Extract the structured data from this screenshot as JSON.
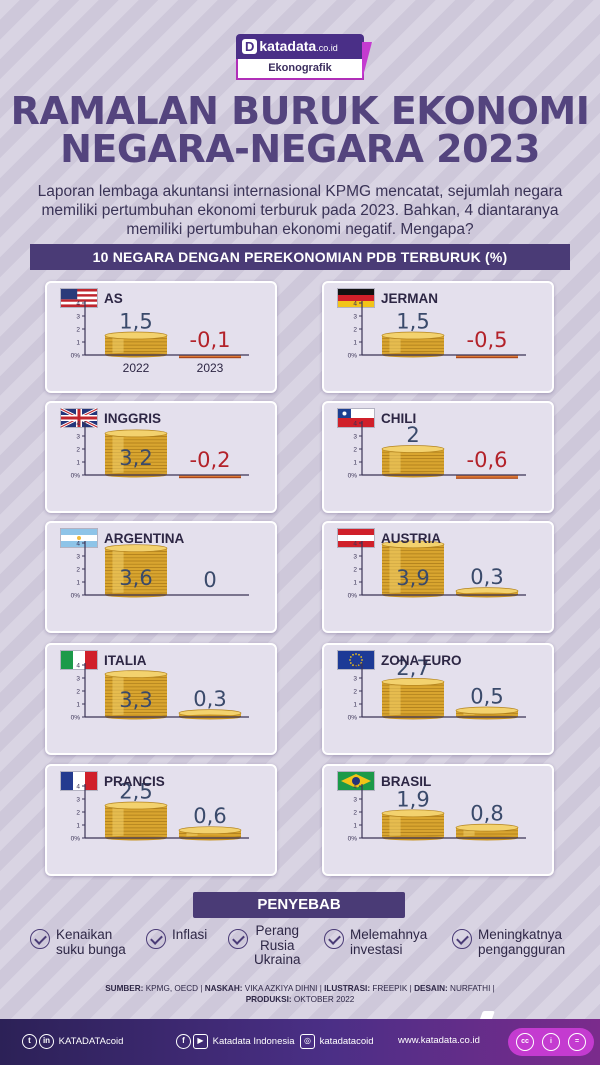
{
  "header": {
    "logo_d": "D",
    "logo_text": "katadata",
    "logo_suffix": ".co.id",
    "logo_tag": "Ekonografik",
    "title_line1": "RAMALAN BURUK EKONOMI",
    "title_line2": "NEGARA-NEGARA 2023",
    "intro_line1": "Laporan lembaga akuntansi internasional KPMG mencatat, sejumlah negara",
    "intro_line2": "memiliki pertumbuhan ekonomi terburuk pada 2023. Bahkan, 4 diantaranya",
    "intro_line3": "memiliki pertumbuhan ekonomi negatif. Mengapa?",
    "section_title": "10 NEGARA DENGAN PEREKONOMIAN PDB TERBURUK (%)"
  },
  "chart_data": {
    "type": "bar",
    "title": "10 NEGARA DENGAN PEREKONOMIAN PDB TERBURUK (%)",
    "categories": [
      "2022",
      "2023"
    ],
    "ylim": [
      0,
      4
    ],
    "yticks": [
      "4",
      "3",
      "2",
      "1",
      "0%"
    ],
    "countries": [
      {
        "name": "AS",
        "values": [
          1.5,
          -0.1
        ],
        "labels": [
          "1,5",
          "-0,1"
        ],
        "flag": "us-flag-icon"
      },
      {
        "name": "JERMAN",
        "values": [
          1.5,
          -0.5
        ],
        "labels": [
          "1,5",
          "-0,5"
        ],
        "flag": "germany-flag-icon"
      },
      {
        "name": "INGGRIS",
        "values": [
          3.2,
          -0.2
        ],
        "labels": [
          "3,2",
          "-0,2"
        ],
        "flag": "uk-flag-icon"
      },
      {
        "name": "CHILI",
        "values": [
          2,
          -0.6
        ],
        "labels": [
          "2",
          "-0,6"
        ],
        "flag": "chile-flag-icon"
      },
      {
        "name": "ARGENTINA",
        "values": [
          3.6,
          0
        ],
        "labels": [
          "3,6",
          "0"
        ],
        "flag": "argentina-flag-icon"
      },
      {
        "name": "AUSTRIA",
        "values": [
          3.9,
          0.3
        ],
        "labels": [
          "3,9",
          "0,3"
        ],
        "flag": "austria-flag-icon"
      },
      {
        "name": "ITALIA",
        "values": [
          3.3,
          0.3
        ],
        "labels": [
          "3,3",
          "0,3"
        ],
        "flag": "italy-flag-icon"
      },
      {
        "name": "ZONA EURO",
        "values": [
          2.7,
          0.5
        ],
        "labels": [
          "2,7",
          "0,5"
        ],
        "flag": "eu-flag-icon"
      },
      {
        "name": "PRANCIS",
        "values": [
          2.5,
          0.6
        ],
        "labels": [
          "2,5",
          "0,6"
        ],
        "flag": "france-flag-icon"
      },
      {
        "name": "BRASIL",
        "values": [
          1.9,
          0.8
        ],
        "labels": [
          "1,9",
          "0,8"
        ],
        "flag": "brazil-flag-icon"
      }
    ],
    "colors": {
      "positive_label": "#3a4a6b",
      "negative_label": "#b3222a",
      "coin": "#e0b23c",
      "negative_bar": "#e07a35"
    }
  },
  "causes": {
    "title": "PENYEBAB",
    "items": [
      {
        "lines": [
          "Kenaikan",
          "suku bunga"
        ]
      },
      {
        "lines": [
          "Inflasi"
        ]
      },
      {
        "lines": [
          "Perang",
          "Rusia",
          "Ukraina"
        ]
      },
      {
        "lines": [
          "Melemahnya",
          "investasi"
        ]
      },
      {
        "lines": [
          "Meningkatnya",
          "pengangguran"
        ]
      }
    ]
  },
  "source": {
    "sumber_label": "SUMBER:",
    "sumber": "KPMG, OECD",
    "naskah_label": "NASKAH:",
    "naskah": "VIKA AZKIYA DIHNI",
    "ilustrasi_label": "ILUSTRASI:",
    "ilustrasi": "FREEPIK",
    "desain_label": "DESAIN:",
    "desain": "NURFATHI",
    "produksi_label": "PRODUKSI:",
    "produksi": "OKTOBER 2022"
  },
  "footer": {
    "twitter_linkedin_handle": "KATADATAcoid",
    "fb_youtube_handle": "Katadata Indonesia",
    "instagram_handle": "katadatacoid",
    "website": "www.katadata.co.id"
  }
}
